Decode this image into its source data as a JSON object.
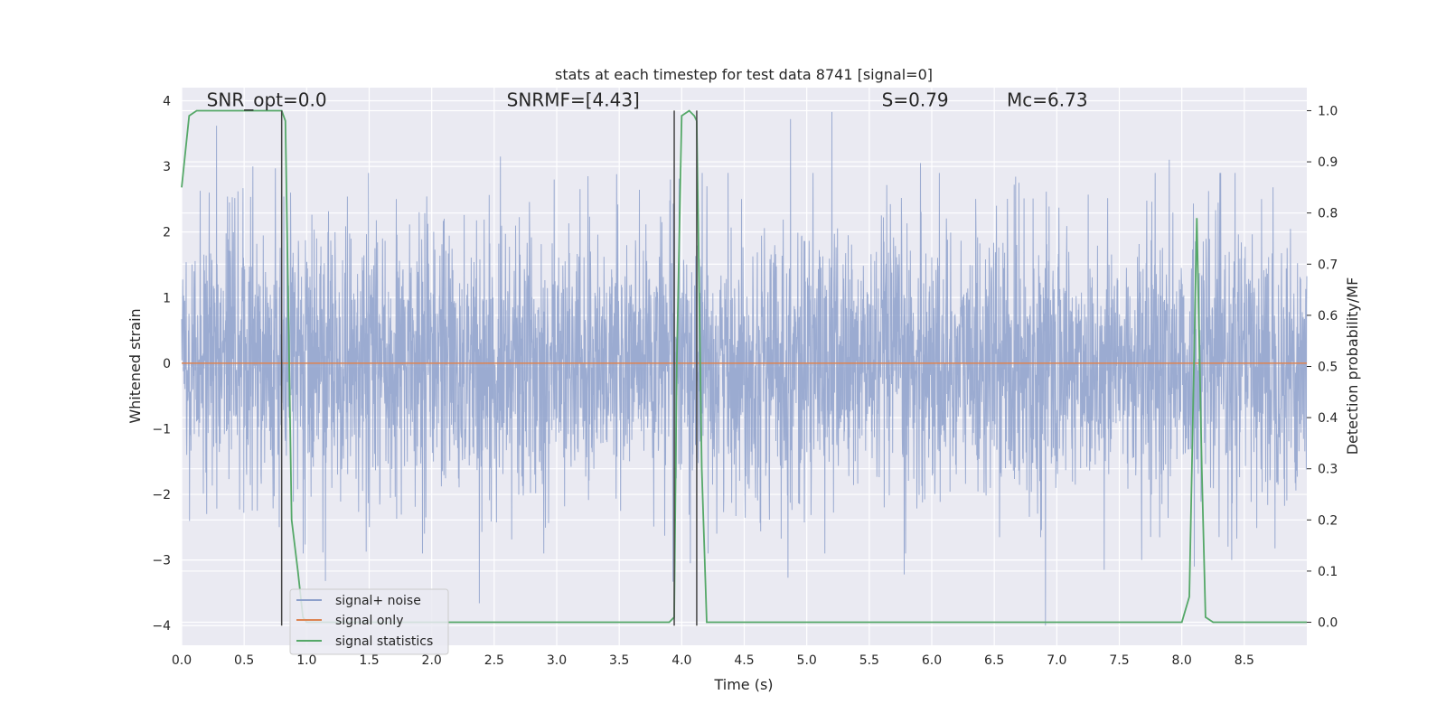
{
  "chart_data": {
    "type": "line",
    "title": "stats at each timestep for test data 8741 [signal=0]",
    "xlabel": "Time (s)",
    "ylabel_left": "Whitened strain",
    "ylabel_right": "Detection probability/MF",
    "xlim": [
      0,
      9.0
    ],
    "ylim_left": [
      -4.3,
      4.2
    ],
    "ylim_right": [
      -0.045,
      1.045
    ],
    "x_ticks": [
      0.0,
      0.5,
      1.0,
      1.5,
      2.0,
      2.5,
      3.0,
      3.5,
      4.0,
      4.5,
      5.0,
      5.5,
      6.0,
      6.5,
      7.0,
      7.5,
      8.0,
      8.5
    ],
    "x_tick_labels": [
      "0.0",
      "0.5",
      "1.0",
      "1.5",
      "2.0",
      "2.5",
      "3.0",
      "3.5",
      "4.0",
      "4.5",
      "5.0",
      "5.5",
      "6.0",
      "6.5",
      "7.0",
      "7.5",
      "8.0",
      "8.5"
    ],
    "y_left_ticks": [
      -4,
      -3,
      -2,
      -1,
      0,
      1,
      2,
      3,
      4
    ],
    "y_left_tick_labels": [
      "−4",
      "−3",
      "−2",
      "−1",
      "0",
      "1",
      "2",
      "3",
      "4"
    ],
    "y_right_ticks": [
      0.0,
      0.1,
      0.2,
      0.3,
      0.4,
      0.5,
      0.6,
      0.7,
      0.8,
      0.9,
      1.0
    ],
    "y_right_tick_labels": [
      "0.0",
      "0.1",
      "0.2",
      "0.3",
      "0.4",
      "0.5",
      "0.6",
      "0.7",
      "0.8",
      "0.9",
      "1.0"
    ],
    "grid": true,
    "legend_placement": "lower-left",
    "annotations": [
      {
        "text": "SNR_opt=0.0",
        "x": 0.2,
        "y": 4.0
      },
      {
        "text": "SNRMF=[4.43]",
        "x": 2.6,
        "y": 4.0
      },
      {
        "text": "S=0.79",
        "x": 5.6,
        "y": 4.0
      },
      {
        "text": "Mc=6.73",
        "x": 6.6,
        "y": 4.0
      }
    ],
    "series": [
      {
        "name": "signal+ noise",
        "axis": "left",
        "color": "#8da0cb",
        "style": "noise",
        "x_range": [
          0,
          9.0
        ],
        "spread_std": 1.0,
        "peaks": [
          {
            "x": 0.28,
            "y": 3.62
          },
          {
            "x": 0.22,
            "y": 2.6
          },
          {
            "x": 0.45,
            "y": 2.62
          },
          {
            "x": 0.57,
            "y": 3.0
          },
          {
            "x": 0.75,
            "y": 2.97
          },
          {
            "x": 1.17,
            "y": 2.0
          },
          {
            "x": 1.9,
            "y": 2.3
          },
          {
            "x": 2.55,
            "y": 3.15
          },
          {
            "x": 2.98,
            "y": 2.8
          },
          {
            "x": 3.25,
            "y": 2.85
          },
          {
            "x": 3.48,
            "y": 2.88
          },
          {
            "x": 3.91,
            "y": 2.8
          },
          {
            "x": 5.2,
            "y": 3.83
          },
          {
            "x": 4.87,
            "y": 3.72
          },
          {
            "x": 5.91,
            "y": 3.05
          },
          {
            "x": 6.66,
            "y": 2.72
          },
          {
            "x": 7.9,
            "y": 3.1
          },
          {
            "x": 8.73,
            "y": 2.68
          },
          {
            "x": 1.15,
            "y": -3.32
          },
          {
            "x": 2.38,
            "y": -3.66
          },
          {
            "x": 3.93,
            "y": -3.33
          },
          {
            "x": 4.07,
            "y": -3.05
          },
          {
            "x": 4.85,
            "y": -3.27
          },
          {
            "x": 5.78,
            "y": -3.22
          },
          {
            "x": 6.91,
            "y": -4.0
          },
          {
            "x": 7.38,
            "y": -3.15
          },
          {
            "x": 8.1,
            "y": -3.1
          },
          {
            "x": 8.4,
            "y": -3.0
          },
          {
            "x": 0.2,
            "y": -2.3
          },
          {
            "x": 0.78,
            "y": -2.5
          },
          {
            "x": 7.68,
            "y": -3.0
          },
          {
            "x": 1.5,
            "y": -2.5
          }
        ]
      },
      {
        "name": "signal only",
        "axis": "left",
        "color": "#dd8452",
        "x": [
          0.0,
          9.0
        ],
        "y": [
          0.0,
          0.0
        ]
      },
      {
        "name": "signal statistics",
        "axis": "right",
        "color": "#55a868",
        "x": [
          0.0,
          0.06,
          0.12,
          0.3,
          0.5,
          0.7,
          0.8,
          0.83,
          0.88,
          0.93,
          0.97,
          1.0,
          1.2,
          2.0,
          3.0,
          3.9,
          3.94,
          3.96,
          4.0,
          4.06,
          4.1,
          4.12,
          4.16,
          4.2,
          4.3,
          5.0,
          6.0,
          7.0,
          8.0,
          8.06,
          8.12,
          8.16,
          8.19,
          8.25,
          8.5,
          9.0
        ],
        "y": [
          0.85,
          0.99,
          1.0,
          1.0,
          1.0,
          1.0,
          1.0,
          0.98,
          0.2,
          0.1,
          0.01,
          0.0,
          0.0,
          0.0,
          0.0,
          0.0,
          0.01,
          0.5,
          0.99,
          1.0,
          0.99,
          0.98,
          0.3,
          0.0,
          0.0,
          0.0,
          0.0,
          0.0,
          0.0,
          0.05,
          0.79,
          0.3,
          0.01,
          0.0,
          0.0,
          0.0
        ]
      }
    ],
    "vertical_markers": [
      {
        "x": 0.8,
        "ymin": -4.0,
        "ymax": 3.85
      },
      {
        "x": 3.94,
        "ymin": -4.0,
        "ymax": 3.85
      },
      {
        "x": 4.12,
        "ymin": -4.0,
        "ymax": 3.85
      }
    ]
  }
}
